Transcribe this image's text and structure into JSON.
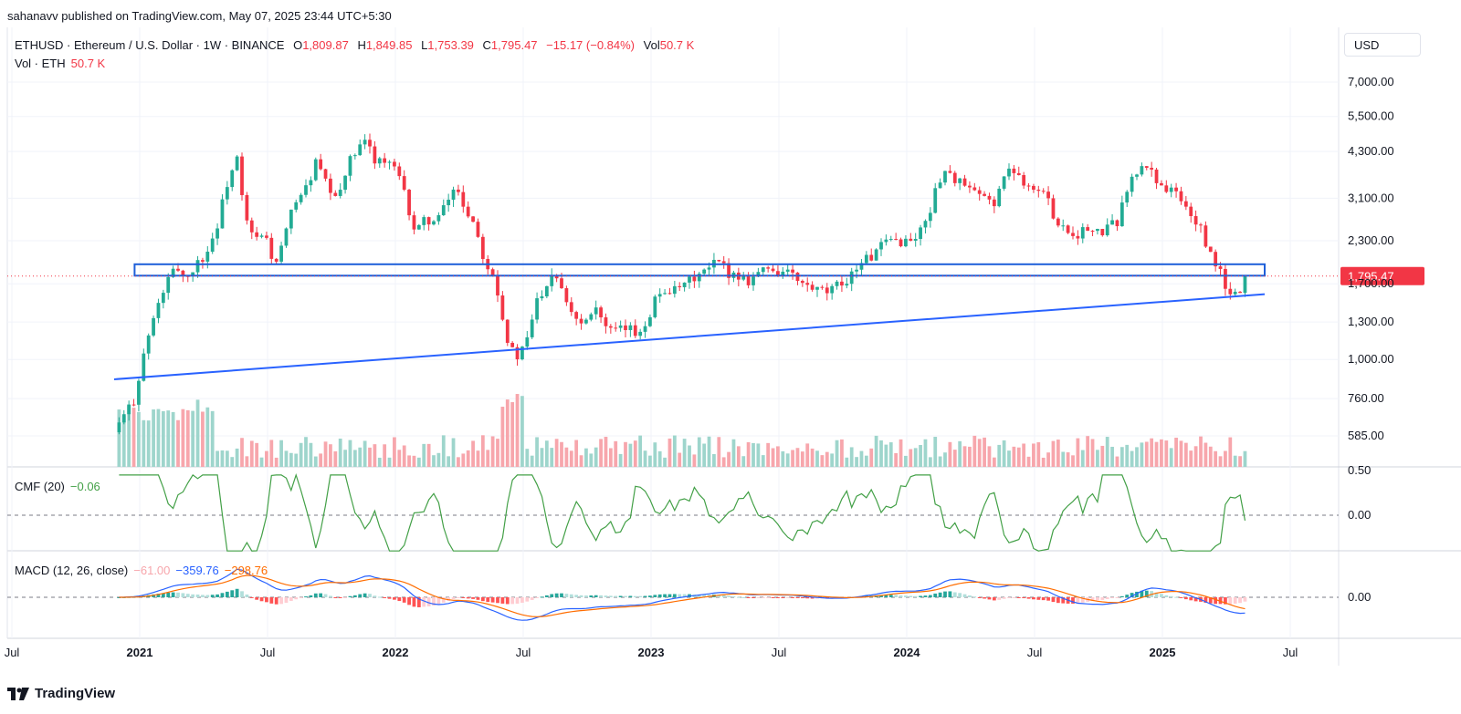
{
  "header": {
    "publish_line": "sahanavv published on TradingView.com, May 07, 2025 23:44 UTC+5:30"
  },
  "legend": {
    "symbol_line": "ETHUSD · Ethereum / U.S. Dollar · 1W · BINANCE",
    "o_label": "O",
    "o_value": "1,809.87",
    "h_label": "H",
    "h_value": "1,849.85",
    "l_label": "L",
    "l_value": "1,753.39",
    "c_label": "C",
    "c_value": "1,795.47",
    "change": "−15.17 (−0.84%)",
    "vol_label": "Vol",
    "vol_value": "50.7 K",
    "vol2_label": "Vol · ETH",
    "vol2_value": "50.7 K"
  },
  "cmf": {
    "label": "CMF (20)",
    "value": "−0.06"
  },
  "macd": {
    "label": "MACD (12, 26, close)",
    "hist": "−61.00",
    "macd": "−359.76",
    "signal": "−298.76"
  },
  "footer": {
    "brand": "TradingView"
  },
  "colors": {
    "up": "#22ab94",
    "down": "#f23645",
    "vol_up": "#9ed5cc",
    "vol_down": "#f7a6ac",
    "trendline": "#2962ff",
    "zone": "#1e5fd9",
    "cmf": "#43a047",
    "macd": "#2962ff",
    "signal": "#ff6d00",
    "hist_up_strong": "#26a69a",
    "hist_up_weak": "#b2dfdb",
    "hist_down_strong": "#ff5252",
    "hist_down_weak": "#ffcdd2",
    "price_tag": "#f23645"
  },
  "chart_data": {
    "type": "candlestick",
    "title": "ETHUSD · Ethereum / U.S. Dollar · 1W · BINANCE",
    "currency_label": "USD",
    "price_scale": "log",
    "y_ticks": [
      "7,000.00",
      "5,500.00",
      "4,300.00",
      "3,100.00",
      "2,300.00",
      "1,700.00",
      "1,300.00",
      "1,000.00",
      "760.00",
      "585.00"
    ],
    "y_tick_values": [
      7000,
      5500,
      4300,
      3100,
      2300,
      1700,
      1300,
      1000,
      760,
      585
    ],
    "x_ticks": [
      "Jul",
      "2021",
      "Jul",
      "2022",
      "Jul",
      "2023",
      "Jul",
      "2024",
      "Jul",
      "2025",
      "Jul"
    ],
    "x_tick_years": [
      2020.5,
      2021.0,
      2021.5,
      2022.0,
      2022.5,
      2023.0,
      2023.5,
      2024.0,
      2024.5,
      2025.0,
      2025.5
    ],
    "last_price": "1,795.47",
    "last_price_value": 1795.47,
    "close_path": [
      [
        2020.9,
        600
      ],
      [
        2020.98,
        760
      ],
      [
        2021.01,
        1000
      ],
      [
        2021.05,
        1300
      ],
      [
        2021.09,
        1600
      ],
      [
        2021.12,
        1800
      ],
      [
        2021.15,
        1900
      ],
      [
        2021.18,
        1750
      ],
      [
        2021.22,
        1950
      ],
      [
        2021.26,
        2100
      ],
      [
        2021.3,
        2500
      ],
      [
        2021.34,
        3400
      ],
      [
        2021.38,
        4100
      ],
      [
        2021.41,
        2700
      ],
      [
        2021.45,
        2300
      ],
      [
        2021.49,
        2400
      ],
      [
        2021.53,
        1900
      ],
      [
        2021.57,
        2400
      ],
      [
        2021.61,
        3100
      ],
      [
        2021.65,
        3300
      ],
      [
        2021.69,
        4000
      ],
      [
        2021.73,
        3400
      ],
      [
        2021.77,
        3000
      ],
      [
        2021.81,
        3900
      ],
      [
        2021.86,
        4400
      ],
      [
        2021.89,
        4600
      ],
      [
        2021.92,
        4100
      ],
      [
        2021.96,
        4000
      ],
      [
        2022.0,
        3800
      ],
      [
        2022.04,
        3100
      ],
      [
        2022.08,
        2400
      ],
      [
        2022.12,
        2700
      ],
      [
        2022.16,
        2600
      ],
      [
        2022.2,
        3000
      ],
      [
        2022.24,
        3400
      ],
      [
        2022.27,
        2900
      ],
      [
        2022.31,
        2600
      ],
      [
        2022.35,
        2000
      ],
      [
        2022.39,
        1800
      ],
      [
        2022.43,
        1200
      ],
      [
        2022.47,
        1000
      ],
      [
        2022.51,
        1100
      ],
      [
        2022.55,
        1500
      ],
      [
        2022.59,
        1700
      ],
      [
        2022.62,
        1900
      ],
      [
        2022.66,
        1600
      ],
      [
        2022.7,
        1350
      ],
      [
        2022.74,
        1300
      ],
      [
        2022.78,
        1500
      ],
      [
        2022.82,
        1250
      ],
      [
        2022.86,
        1200
      ],
      [
        2022.9,
        1250
      ],
      [
        2022.94,
        1200
      ],
      [
        2022.98,
        1300
      ],
      [
        2023.02,
        1550
      ],
      [
        2023.06,
        1650
      ],
      [
        2023.1,
        1600
      ],
      [
        2023.14,
        1700
      ],
      [
        2023.18,
        1800
      ],
      [
        2023.22,
        1850
      ],
      [
        2023.26,
        2000
      ],
      [
        2023.3,
        1850
      ],
      [
        2023.34,
        1800
      ],
      [
        2023.38,
        1750
      ],
      [
        2023.42,
        1850
      ],
      [
        2023.46,
        1900
      ],
      [
        2023.5,
        1850
      ],
      [
        2023.54,
        1850
      ],
      [
        2023.58,
        1700
      ],
      [
        2023.62,
        1650
      ],
      [
        2023.66,
        1600
      ],
      [
        2023.7,
        1600
      ],
      [
        2023.74,
        1700
      ],
      [
        2023.78,
        1800
      ],
      [
        2023.82,
        2000
      ],
      [
        2023.86,
        2050
      ],
      [
        2023.9,
        2200
      ],
      [
        2023.94,
        2300
      ],
      [
        2023.98,
        2300
      ],
      [
        2024.02,
        2300
      ],
      [
        2024.06,
        2500
      ],
      [
        2024.1,
        3000
      ],
      [
        2024.14,
        3800
      ],
      [
        2024.18,
        3600
      ],
      [
        2024.22,
        3400
      ],
      [
        2024.26,
        3200
      ],
      [
        2024.3,
        3100
      ],
      [
        2024.34,
        3000
      ],
      [
        2024.38,
        3600
      ],
      [
        2024.42,
        3800
      ],
      [
        2024.46,
        3500
      ],
      [
        2024.5,
        3300
      ],
      [
        2024.54,
        3200
      ],
      [
        2024.58,
        2700
      ],
      [
        2024.62,
        2500
      ],
      [
        2024.66,
        2400
      ],
      [
        2024.7,
        2500
      ],
      [
        2024.74,
        2400
      ],
      [
        2024.78,
        2500
      ],
      [
        2024.82,
        2600
      ],
      [
        2024.86,
        3300
      ],
      [
        2024.9,
        3700
      ],
      [
        2024.94,
        3900
      ],
      [
        2024.98,
        3500
      ],
      [
        2025.02,
        3300
      ],
      [
        2025.06,
        3200
      ],
      [
        2025.1,
        2800
      ],
      [
        2025.14,
        2600
      ],
      [
        2025.18,
        2100
      ],
      [
        2025.22,
        1900
      ],
      [
        2025.26,
        1550
      ],
      [
        2025.3,
        1600
      ],
      [
        2025.34,
        1795
      ]
    ],
    "annotations": {
      "support_zone": [
        1800,
        1950
      ],
      "trendline": [
        [
          2020.9,
          870
        ],
        [
          2025.4,
          1580
        ]
      ]
    },
    "cmf": {
      "y_ticks": [
        "0.50",
        "0.00"
      ],
      "y_tick_values": [
        0.5,
        0.0
      ],
      "last": -0.06
    },
    "macd": {
      "y_ticks": [
        "0.00"
      ],
      "y_tick_values": [
        0
      ],
      "hist": -61.0,
      "macd": -359.76,
      "signal": -298.76
    }
  }
}
